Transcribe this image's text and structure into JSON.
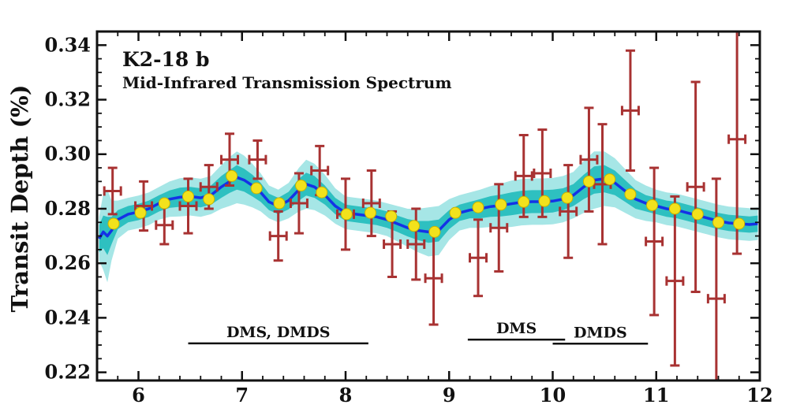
{
  "chart_data": {
    "type": "scatter",
    "title": "K2-18 b",
    "subtitle": "Mid-Infrared Transmission Spectrum",
    "xlabel": "",
    "ylabel": "Transit Depth (%)",
    "xlim": [
      5.6,
      12.0
    ],
    "ylim": [
      0.217,
      0.345
    ],
    "xticks": [
      6,
      7,
      8,
      9,
      10,
      11,
      12
    ],
    "yticks": [
      0.22,
      0.24,
      0.26,
      0.28,
      0.3,
      0.32,
      0.34
    ],
    "ytick_labels": [
      "0.22",
      "0.24",
      "0.26",
      "0.28",
      "0.30",
      "0.32",
      "0.34"
    ],
    "grid": false,
    "colors": {
      "observed": "#a83232",
      "model": "#1432e6",
      "binned": "#f2e21c",
      "band_outer": "#a6e6e6",
      "band_inner": "#2ec0c0"
    },
    "observed": {
      "x": [
        5.75,
        6.05,
        6.25,
        6.48,
        6.68,
        6.88,
        7.15,
        7.35,
        7.55,
        7.75,
        8.0,
        8.25,
        8.45,
        8.68,
        8.85,
        9.28,
        9.48,
        9.72,
        9.9,
        10.15,
        10.35,
        10.48,
        10.75,
        10.98,
        11.18,
        11.38,
        11.58,
        11.78
      ],
      "y": [
        0.2865,
        0.281,
        0.274,
        0.281,
        0.288,
        0.298,
        0.298,
        0.27,
        0.282,
        0.294,
        0.278,
        0.282,
        0.267,
        0.267,
        0.2545,
        0.262,
        0.273,
        0.292,
        0.293,
        0.279,
        0.298,
        0.289,
        0.316,
        0.268,
        0.2535,
        0.288,
        0.247,
        0.3055
      ],
      "xerr": [
        0.08,
        0.08,
        0.08,
        0.08,
        0.08,
        0.08,
        0.08,
        0.08,
        0.08,
        0.08,
        0.08,
        0.08,
        0.08,
        0.08,
        0.08,
        0.08,
        0.08,
        0.08,
        0.08,
        0.08,
        0.08,
        0.08,
        0.08,
        0.08,
        0.08,
        0.08,
        0.08,
        0.08
      ],
      "yerr": [
        0.0085,
        0.009,
        0.007,
        0.01,
        0.008,
        0.0095,
        0.007,
        0.009,
        0.011,
        0.009,
        0.013,
        0.012,
        0.012,
        0.013,
        0.017,
        0.014,
        0.016,
        0.015,
        0.016,
        0.017,
        0.019,
        0.022,
        0.022,
        0.027,
        0.031,
        0.0385,
        0.044,
        0.042
      ]
    },
    "binned_model": {
      "x": [
        5.76,
        6.02,
        6.25,
        6.48,
        6.68,
        6.9,
        7.14,
        7.36,
        7.57,
        7.77,
        8.01,
        8.24,
        8.44,
        8.66,
        8.86,
        9.06,
        9.28,
        9.5,
        9.72,
        9.92,
        10.14,
        10.35,
        10.55,
        10.75,
        10.96,
        11.18,
        11.4,
        11.6,
        11.8
      ],
      "y": [
        0.2745,
        0.2785,
        0.282,
        0.2845,
        0.2835,
        0.292,
        0.2875,
        0.282,
        0.2885,
        0.286,
        0.278,
        0.2785,
        0.2772,
        0.2737,
        0.2715,
        0.2785,
        0.2805,
        0.2815,
        0.2825,
        0.2828,
        0.284,
        0.29,
        0.2908,
        0.2853,
        0.2813,
        0.28,
        0.278,
        0.275,
        0.2745
      ]
    },
    "model": {
      "x": [
        5.62,
        5.66,
        5.7,
        5.74,
        5.8,
        5.9,
        6.0,
        6.1,
        6.2,
        6.3,
        6.4,
        6.5,
        6.6,
        6.7,
        6.8,
        6.88,
        6.95,
        7.02,
        7.1,
        7.18,
        7.26,
        7.35,
        7.45,
        7.55,
        7.62,
        7.7,
        7.8,
        7.9,
        8.0,
        8.1,
        8.2,
        8.3,
        8.4,
        8.5,
        8.6,
        8.7,
        8.8,
        8.9,
        9.0,
        9.1,
        9.2,
        9.3,
        9.4,
        9.5,
        9.6,
        9.7,
        9.8,
        9.9,
        10.0,
        10.1,
        10.2,
        10.3,
        10.4,
        10.5,
        10.6,
        10.7,
        10.8,
        10.9,
        11.0,
        11.1,
        11.2,
        11.3,
        11.4,
        11.5,
        11.6,
        11.7,
        11.8,
        11.9,
        11.98
      ],
      "y": [
        0.269,
        0.2715,
        0.27,
        0.272,
        0.276,
        0.278,
        0.2788,
        0.28,
        0.282,
        0.2835,
        0.2842,
        0.2845,
        0.284,
        0.285,
        0.288,
        0.29,
        0.2915,
        0.2905,
        0.2885,
        0.286,
        0.2825,
        0.281,
        0.283,
        0.287,
        0.289,
        0.288,
        0.285,
        0.281,
        0.2785,
        0.278,
        0.2775,
        0.277,
        0.276,
        0.2745,
        0.273,
        0.272,
        0.2715,
        0.272,
        0.276,
        0.2785,
        0.2795,
        0.28,
        0.2808,
        0.2812,
        0.2818,
        0.2824,
        0.2826,
        0.2826,
        0.2828,
        0.2835,
        0.285,
        0.288,
        0.2905,
        0.291,
        0.2895,
        0.2865,
        0.2835,
        0.282,
        0.281,
        0.28,
        0.2795,
        0.2785,
        0.2775,
        0.2765,
        0.2755,
        0.2748,
        0.2745,
        0.2742,
        0.2745
      ],
      "inner_halfwidth": [
        0.005,
        0.006,
        0.007,
        0.005,
        0.0035,
        0.003,
        0.003,
        0.003,
        0.003,
        0.0032,
        0.0035,
        0.0035,
        0.0035,
        0.0035,
        0.004,
        0.0042,
        0.0045,
        0.0042,
        0.004,
        0.0035,
        0.003,
        0.003,
        0.0032,
        0.004,
        0.0042,
        0.004,
        0.0035,
        0.003,
        0.003,
        0.003,
        0.003,
        0.003,
        0.003,
        0.003,
        0.0032,
        0.0035,
        0.004,
        0.004,
        0.0035,
        0.003,
        0.003,
        0.0035,
        0.0038,
        0.004,
        0.0042,
        0.0042,
        0.0042,
        0.0042,
        0.0042,
        0.004,
        0.004,
        0.0045,
        0.005,
        0.005,
        0.0045,
        0.004,
        0.0035,
        0.003,
        0.003,
        0.003,
        0.003,
        0.003,
        0.003,
        0.003,
        0.003,
        0.003,
        0.003,
        0.003,
        0.003
      ],
      "outer_halfwidth": [
        0.008,
        0.014,
        0.017,
        0.011,
        0.007,
        0.006,
        0.006,
        0.006,
        0.006,
        0.0065,
        0.007,
        0.007,
        0.007,
        0.007,
        0.008,
        0.009,
        0.0095,
        0.009,
        0.008,
        0.007,
        0.006,
        0.006,
        0.0065,
        0.008,
        0.009,
        0.0085,
        0.0075,
        0.0065,
        0.006,
        0.006,
        0.006,
        0.006,
        0.006,
        0.0065,
        0.007,
        0.008,
        0.009,
        0.009,
        0.0075,
        0.0065,
        0.0065,
        0.007,
        0.0075,
        0.008,
        0.0085,
        0.0085,
        0.0085,
        0.0085,
        0.0085,
        0.0085,
        0.0085,
        0.0095,
        0.0105,
        0.01,
        0.009,
        0.008,
        0.007,
        0.0065,
        0.006,
        0.006,
        0.006,
        0.006,
        0.006,
        0.006,
        0.006,
        0.006,
        0.006,
        0.006,
        0.006
      ]
    },
    "annotations": [
      {
        "text": "DMS, DMDS",
        "x0": 6.48,
        "x1": 8.22,
        "y": 0.2306
      },
      {
        "text": "DMS",
        "x0": 9.18,
        "x1": 10.12,
        "y": 0.232
      },
      {
        "text": "DMDS",
        "x0": 10.0,
        "x1": 10.92,
        "y": 0.2305
      }
    ]
  }
}
